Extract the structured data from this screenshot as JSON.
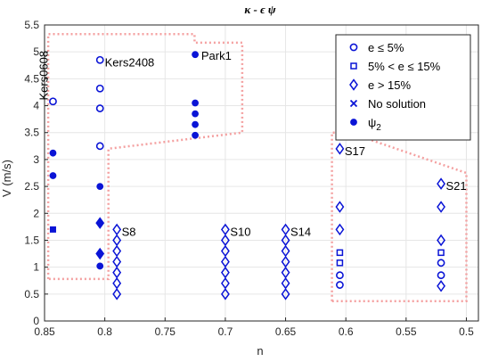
{
  "chart_data": {
    "type": "scatter",
    "title": "κ - ϵ ψ",
    "xlabel": "n",
    "ylabel": "V (m/s)",
    "xlim": [
      0.85,
      0.49
    ],
    "ylim": [
      0,
      5.5
    ],
    "x_reversed": true,
    "grid": true,
    "legend_position": "top-right",
    "xticks": [
      "0.85",
      "0.8",
      "0.75",
      "0.7",
      "0.65",
      "0.6",
      "0.55",
      "0.5"
    ],
    "xtick_values": [
      0.85,
      0.8,
      0.75,
      0.7,
      0.65,
      0.6,
      0.55,
      0.5
    ],
    "yticks": [
      "0",
      "0.5",
      "1",
      "1.5",
      "2",
      "2.5",
      "3",
      "3.5",
      "4",
      "4.5",
      "5",
      "5.5"
    ],
    "ytick_values": [
      0,
      0.5,
      1,
      1.5,
      2,
      2.5,
      3,
      3.5,
      4,
      4.5,
      5,
      5.5
    ],
    "colors": {
      "marker": "#0a14d6",
      "region": "#f4a0a0",
      "axis": "#262626",
      "grid": "#e6e6e6"
    },
    "series": [
      {
        "name": "e ≤ 5%",
        "marker": "circle-open",
        "points": [
          {
            "x": 0.843,
            "y": 4.08
          },
          {
            "x": 0.804,
            "y": 4.85
          },
          {
            "x": 0.804,
            "y": 4.32
          },
          {
            "x": 0.804,
            "y": 3.95
          },
          {
            "x": 0.804,
            "y": 3.25
          },
          {
            "x": 0.605,
            "y": 0.85
          },
          {
            "x": 0.605,
            "y": 0.67
          },
          {
            "x": 0.521,
            "y": 1.08
          },
          {
            "x": 0.521,
            "y": 0.85
          }
        ]
      },
      {
        "name": "5% < e ≤ 15%",
        "marker": "square-open",
        "points": [
          {
            "x": 0.605,
            "y": 1.27
          },
          {
            "x": 0.605,
            "y": 1.08
          },
          {
            "x": 0.521,
            "y": 1.27
          }
        ]
      },
      {
        "name": "e > 15%",
        "marker": "diamond-open",
        "points": [
          {
            "x": 0.79,
            "y": 1.7
          },
          {
            "x": 0.79,
            "y": 1.5
          },
          {
            "x": 0.79,
            "y": 1.3
          },
          {
            "x": 0.79,
            "y": 1.1
          },
          {
            "x": 0.79,
            "y": 0.9
          },
          {
            "x": 0.79,
            "y": 0.7
          },
          {
            "x": 0.79,
            "y": 0.5
          },
          {
            "x": 0.7,
            "y": 1.7
          },
          {
            "x": 0.7,
            "y": 1.5
          },
          {
            "x": 0.7,
            "y": 1.3
          },
          {
            "x": 0.7,
            "y": 1.1
          },
          {
            "x": 0.7,
            "y": 0.9
          },
          {
            "x": 0.7,
            "y": 0.7
          },
          {
            "x": 0.7,
            "y": 0.5
          },
          {
            "x": 0.65,
            "y": 1.7
          },
          {
            "x": 0.65,
            "y": 1.5
          },
          {
            "x": 0.65,
            "y": 1.3
          },
          {
            "x": 0.65,
            "y": 1.1
          },
          {
            "x": 0.65,
            "y": 0.9
          },
          {
            "x": 0.65,
            "y": 0.7
          },
          {
            "x": 0.65,
            "y": 0.5
          },
          {
            "x": 0.605,
            "y": 3.2
          },
          {
            "x": 0.605,
            "y": 2.12
          },
          {
            "x": 0.605,
            "y": 1.7
          },
          {
            "x": 0.521,
            "y": 2.55
          },
          {
            "x": 0.521,
            "y": 2.12
          },
          {
            "x": 0.521,
            "y": 1.5
          },
          {
            "x": 0.521,
            "y": 0.65
          }
        ]
      },
      {
        "name": "No solution",
        "marker": "x",
        "points": []
      },
      {
        "name": "ψ2",
        "marker": "circle-filled",
        "points": [
          {
            "x": 0.843,
            "y": 3.12
          },
          {
            "x": 0.843,
            "y": 2.7
          },
          {
            "x": 0.804,
            "y": 2.5
          },
          {
            "x": 0.804,
            "y": 1.02
          },
          {
            "x": 0.725,
            "y": 4.95
          },
          {
            "x": 0.725,
            "y": 4.05
          },
          {
            "x": 0.725,
            "y": 3.85
          },
          {
            "x": 0.725,
            "y": 3.65
          },
          {
            "x": 0.725,
            "y": 3.45
          }
        ]
      },
      {
        "name": "ψ2 (square)",
        "marker": "square-filled",
        "points": [
          {
            "x": 0.843,
            "y": 1.7
          }
        ]
      },
      {
        "name": "ψ2 (diamond)",
        "marker": "diamond-filled",
        "points": [
          {
            "x": 0.804,
            "y": 1.82
          },
          {
            "x": 0.804,
            "y": 1.25
          }
        ]
      }
    ],
    "legend": [
      {
        "marker": "circle-open",
        "label": "e ≤ 5%"
      },
      {
        "marker": "square-open",
        "label": "5% < e ≤ 15%"
      },
      {
        "marker": "diamond-open",
        "label": "e > 15%"
      },
      {
        "marker": "x",
        "label": "No solution"
      },
      {
        "marker": "circle-filled",
        "label": "ψ",
        "sub": "2"
      }
    ],
    "annotations": [
      {
        "text": "Kers0608",
        "x": 0.846,
        "y": 4.1,
        "rotate": true
      },
      {
        "text": "Kers2408",
        "x": 0.8,
        "y": 4.8
      },
      {
        "text": "Park1",
        "x": 0.72,
        "y": 4.92
      },
      {
        "text": "S8",
        "x": 0.786,
        "y": 1.65
      },
      {
        "text": "S10",
        "x": 0.696,
        "y": 1.65
      },
      {
        "text": "S14",
        "x": 0.646,
        "y": 1.65
      },
      {
        "text": "S17",
        "x": 0.601,
        "y": 3.15
      },
      {
        "text": "S21",
        "x": 0.517,
        "y": 2.5
      }
    ],
    "regions": [
      {
        "points": [
          [
            0.847,
            0.78
          ],
          [
            0.847,
            5.33
          ],
          [
            0.7255,
            5.33
          ],
          [
            0.7255,
            5.17
          ],
          [
            0.686,
            5.17
          ],
          [
            0.686,
            3.5
          ],
          [
            0.797,
            3.2
          ],
          [
            0.797,
            0.78
          ]
        ]
      },
      {
        "points": [
          [
            0.6115,
            0.37
          ],
          [
            0.6115,
            3.5
          ],
          [
            0.597,
            3.5
          ],
          [
            0.5,
            2.75
          ],
          [
            0.5,
            0.37
          ]
        ]
      }
    ]
  }
}
